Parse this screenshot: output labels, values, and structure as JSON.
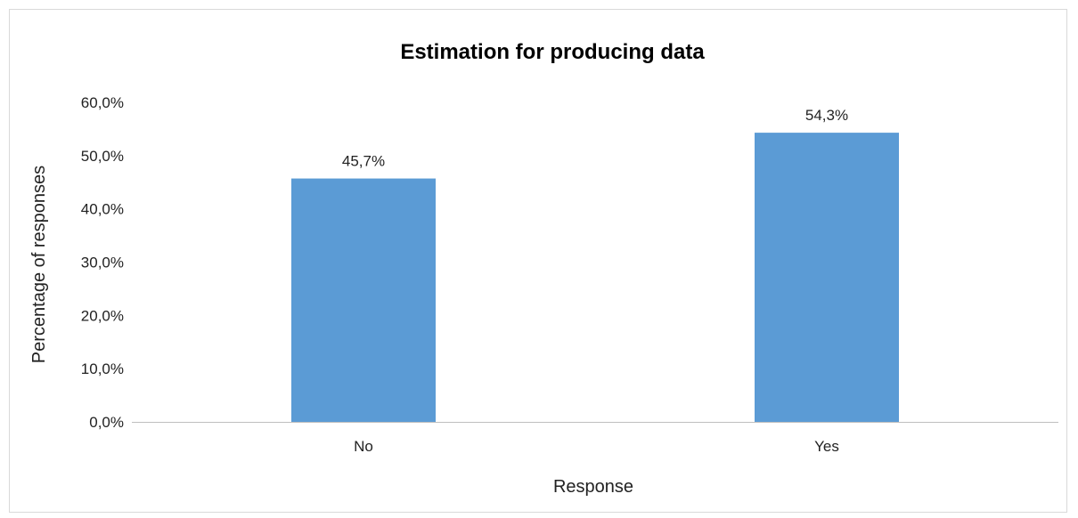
{
  "chart_data": {
    "type": "bar",
    "title": "Estimation for producing data",
    "xlabel": "Response",
    "ylabel": "Percentage  of responses",
    "categories": [
      "No",
      "Yes"
    ],
    "values": [
      45.7,
      54.3
    ],
    "data_labels": [
      "45,7%",
      "54,3%"
    ],
    "ylim": [
      0,
      60
    ],
    "yticks": [
      0,
      10,
      20,
      30,
      40,
      50,
      60
    ],
    "ytick_labels": [
      "0,0%",
      "10,0%",
      "20,0%",
      "30,0%",
      "40,0%",
      "50,0%",
      "60,0%"
    ],
    "grid": false,
    "legend": "none",
    "bar_color": "#5b9bd5",
    "axis_color": "#bfbfbf"
  }
}
